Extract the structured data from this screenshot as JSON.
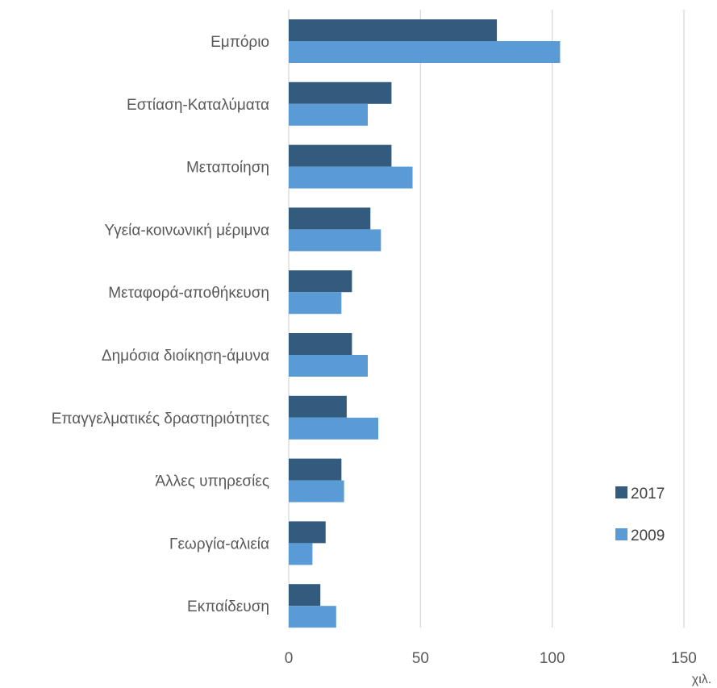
{
  "chart_data": {
    "type": "bar",
    "orientation": "horizontal",
    "categories": [
      "Εμπόριο",
      "Εστίαση-Καταλύματα",
      "Μεταποίηση",
      "Υγεία-κοινωνική μέριμνα",
      "Μεταφορά-αποθήκευση",
      "Δημόσια διοίκηση-άμυνα",
      "Επαγγελματικές δραστηριότητες",
      "Άλλες υπηρεσίες",
      "Γεωργία-αλιεία",
      "Εκπαίδευση"
    ],
    "series": [
      {
        "name": "2017",
        "color": "#335b7d",
        "values": [
          79,
          39,
          39,
          31,
          24,
          24,
          22,
          20,
          14,
          12
        ]
      },
      {
        "name": "2009",
        "color": "#5b9bd5",
        "values": [
          103,
          30,
          47,
          35,
          20,
          30,
          34,
          21,
          9,
          18
        ]
      }
    ],
    "xlim": [
      0,
      150
    ],
    "x_ticks": [
      "0",
      "50",
      "100",
      "150"
    ],
    "unit_label": "χιλ.",
    "grid": "vertical",
    "legend": "right"
  }
}
